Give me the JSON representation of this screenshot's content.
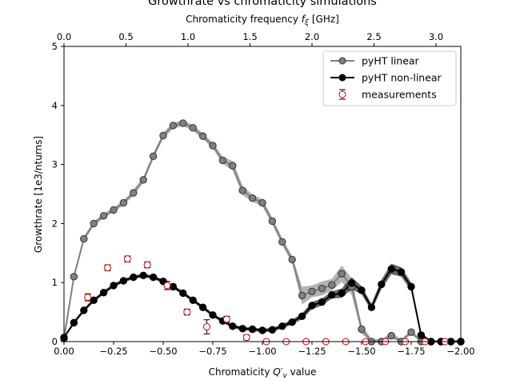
{
  "chart_data": {
    "type": "line",
    "title": "Growthrate vs chromaticity simulations",
    "xlabel": "Chromaticity Q'_v value",
    "ylabel": "Growthrate [1e3/nturns]",
    "top_xlabel": "Chromaticity frequency f_ξ [GHz]",
    "xlim": [
      0.0,
      -2.0
    ],
    "ylim": [
      0,
      5
    ],
    "top_xlim": [
      0.0,
      3.2
    ],
    "x_ticks": [
      0.0,
      -0.25,
      -0.5,
      -0.75,
      -1.0,
      -1.25,
      -1.5,
      -1.75,
      -2.0
    ],
    "x_tick_labels": [
      "0.00",
      "−0.25",
      "−0.50",
      "−0.75",
      "−1.00",
      "−1.25",
      "−1.50",
      "−1.75",
      "−2.00"
    ],
    "y_ticks": [
      0,
      1,
      2,
      3,
      4,
      5
    ],
    "y_tick_labels": [
      "0",
      "1",
      "2",
      "3",
      "4",
      "5"
    ],
    "top_x_ticks": [
      0.0,
      0.5,
      1.0,
      1.5,
      2.0,
      2.5,
      3.0
    ],
    "top_x_tick_labels": [
      "0.0",
      "0.5",
      "1.0",
      "1.5",
      "2.0",
      "2.5",
      "3.0"
    ],
    "grid": false,
    "legend_position": "top-right",
    "series": [
      {
        "name": "pyHT linear",
        "color": "#808080",
        "x": [
          0.0,
          -0.05,
          -0.1,
          -0.15,
          -0.2,
          -0.25,
          -0.3,
          -0.35,
          -0.4,
          -0.45,
          -0.5,
          -0.55,
          -0.6,
          -0.65,
          -0.7,
          -0.75,
          -0.8,
          -0.85,
          -0.9,
          -0.95,
          -1.0,
          -1.05,
          -1.1,
          -1.15,
          -1.2,
          -1.25,
          -1.3,
          -1.35,
          -1.4,
          -1.45,
          -1.5,
          -1.55,
          -1.6,
          -1.65,
          -1.7,
          -1.75,
          -1.8,
          -1.85,
          -1.9,
          -1.95,
          -2.0
        ],
        "y": [
          0.05,
          1.1,
          1.74,
          2.0,
          2.13,
          2.23,
          2.35,
          2.52,
          2.74,
          3.14,
          3.49,
          3.66,
          3.7,
          3.62,
          3.48,
          3.32,
          3.07,
          2.98,
          2.56,
          2.43,
          2.35,
          2.04,
          1.69,
          1.39,
          0.78,
          0.85,
          0.9,
          0.96,
          1.15,
          0.93,
          0.21,
          0.0,
          0.0,
          0.1,
          0.0,
          0.16,
          0.0,
          0.0,
          0.0,
          0.0,
          0.0
        ],
        "band": [
          0.02,
          0.04,
          0.04,
          0.04,
          0.04,
          0.04,
          0.04,
          0.05,
          0.05,
          0.05,
          0.05,
          0.05,
          0.05,
          0.05,
          0.05,
          0.05,
          0.06,
          0.08,
          0.08,
          0.06,
          0.06,
          0.06,
          0.06,
          0.06,
          0.15,
          0.1,
          0.12,
          0.1,
          0.14,
          0.14,
          0.08,
          0.04,
          0.04,
          0.05,
          0.04,
          0.04,
          0.03,
          0.02,
          0.02,
          0.02,
          0.02
        ]
      },
      {
        "name": "pyHT non-linear",
        "color": "#000000",
        "x": [
          0.0,
          -0.05,
          -0.1,
          -0.15,
          -0.2,
          -0.25,
          -0.3,
          -0.35,
          -0.4,
          -0.45,
          -0.5,
          -0.55,
          -0.6,
          -0.65,
          -0.7,
          -0.75,
          -0.8,
          -0.85,
          -0.9,
          -0.95,
          -1.0,
          -1.05,
          -1.1,
          -1.15,
          -1.2,
          -1.25,
          -1.3,
          -1.35,
          -1.4,
          -1.45,
          -1.5,
          -1.55,
          -1.6,
          -1.65,
          -1.7,
          -1.75,
          -1.8,
          -1.85,
          -1.9,
          -1.95,
          -2.0
        ],
        "y": [
          0.07,
          0.32,
          0.53,
          0.7,
          0.83,
          0.95,
          1.03,
          1.09,
          1.12,
          1.09,
          1.02,
          0.93,
          0.82,
          0.7,
          0.58,
          0.45,
          0.35,
          0.26,
          0.22,
          0.21,
          0.19,
          0.2,
          0.26,
          0.33,
          0.43,
          0.61,
          0.67,
          0.79,
          0.82,
          0.99,
          0.87,
          0.58,
          0.97,
          1.23,
          1.18,
          0.93,
          0.11,
          0.0,
          0.0,
          0.0,
          0.0
        ],
        "band": [
          0.02,
          0.03,
          0.03,
          0.03,
          0.03,
          0.03,
          0.03,
          0.03,
          0.03,
          0.03,
          0.03,
          0.03,
          0.03,
          0.03,
          0.03,
          0.03,
          0.03,
          0.03,
          0.03,
          0.03,
          0.03,
          0.03,
          0.04,
          0.04,
          0.05,
          0.06,
          0.06,
          0.06,
          0.08,
          0.1,
          0.07,
          0.06,
          0.08,
          0.09,
          0.08,
          0.07,
          0.04,
          0.02,
          0.02,
          0.02,
          0.02
        ]
      },
      {
        "name": "measurements",
        "color": "#cc0000",
        "style": "errorbar",
        "x": [
          -0.12,
          -0.22,
          -0.32,
          -0.42,
          -0.52,
          -0.62,
          -0.72,
          -0.82,
          -0.92,
          -1.02,
          -1.12,
          -1.22,
          -1.32,
          -1.42,
          -1.52,
          -1.62,
          -1.72,
          -1.82,
          -1.92
        ],
        "y": [
          0.75,
          1.25,
          1.4,
          1.3,
          0.95,
          0.5,
          0.25,
          0.38,
          0.07,
          0.0,
          0.0,
          0.0,
          0.0,
          0.0,
          0.0,
          0.0,
          0.0,
          0.0,
          0.0
        ],
        "err": [
          0.06,
          0.05,
          0.05,
          0.05,
          0.07,
          0.05,
          0.12,
          0.05,
          0.04,
          0.02,
          0.02,
          0.02,
          0.02,
          0.02,
          0.02,
          0.02,
          0.02,
          0.02,
          0.02
        ]
      }
    ]
  }
}
